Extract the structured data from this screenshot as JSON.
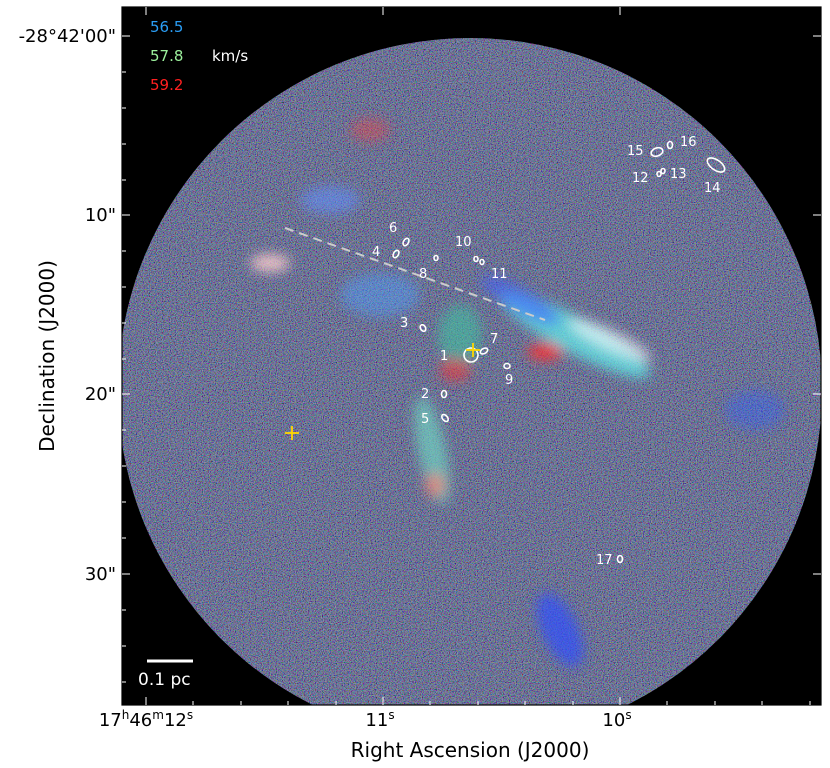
{
  "figure": {
    "velocity_legend": {
      "items": [
        {
          "label": "56.5",
          "color": "#2a9df4"
        },
        {
          "label": "57.8",
          "color": "#9cf09c"
        },
        {
          "label": "59.2",
          "color": "#ff2020"
        }
      ],
      "unit": "km/s"
    },
    "scale_bar_label": "0.1 pc",
    "x_axis": {
      "title": "Right Ascension (J2000)",
      "ticks": [
        {
          "base": "17",
          "sup1": "h",
          "mid": "46",
          "sup2": "m",
          "end": "12",
          "sup3": "s"
        },
        {
          "base": "11",
          "sup1": "s"
        },
        {
          "base": "10",
          "sup1": "s"
        }
      ]
    },
    "y_axis": {
      "title": "Declination (J2000)",
      "ticks": [
        "-28°42'00\"",
        "10\"",
        "20\"",
        "30\""
      ]
    },
    "sources": [
      "1",
      "2",
      "3",
      "4",
      "5",
      "6",
      "7",
      "8",
      "9",
      "10",
      "11",
      "12",
      "13",
      "14",
      "15",
      "16",
      "17"
    ],
    "colors": {
      "background": "#000000",
      "annotation": "#ffffff",
      "marker": "#ffd700",
      "dashed_line": "#cccccc"
    }
  }
}
